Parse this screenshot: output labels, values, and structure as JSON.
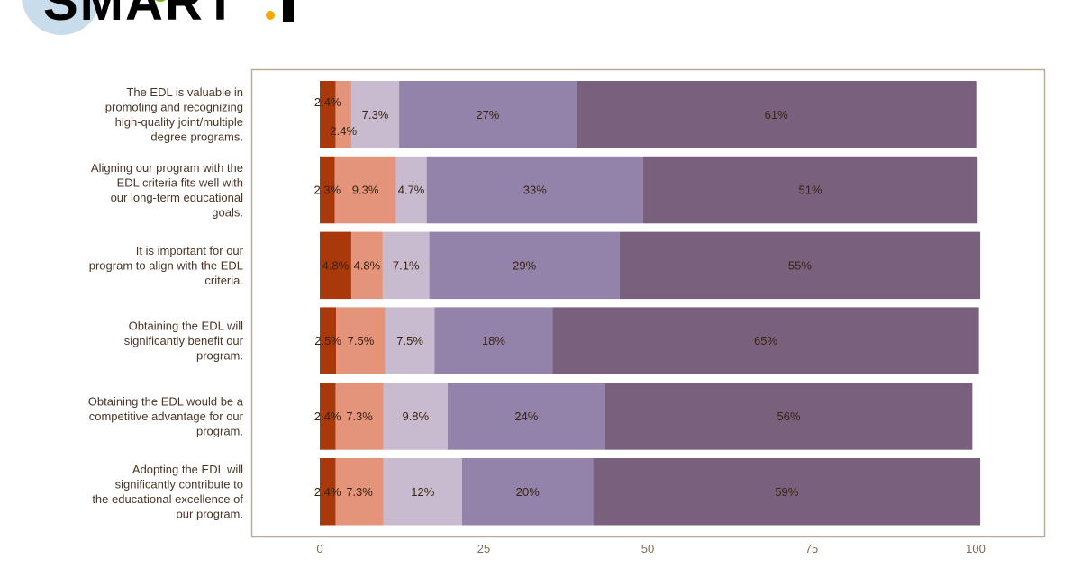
{
  "logo": {
    "text": "SMART.I",
    "colors": {
      "circle": "#c9dcec",
      "accent_dot": "#f5a800",
      "green_dot": "#7ab51d"
    }
  },
  "chart_data": {
    "type": "bar",
    "orientation": "horizontal",
    "stacked": true,
    "categories": [
      "The EDL is valuable in promoting and recognizing high-quality joint/multiple degree programs.",
      "Aligning our program with the EDL criteria fits well with our long-term educational goals.",
      "It is important for our program to align with the EDL criteria.",
      "Obtaining the EDL will significantly benefit our program.",
      "Obtaining the EDL would be a competitive advantage for our program.",
      "Adopting the EDL will significantly contribute to the educational excellence of our program."
    ],
    "category_lines": [
      [
        "The EDL is valuable in",
        "promoting and recognizing",
        "high-quality joint/multiple",
        "degree programs."
      ],
      [
        "Aligning our program with the",
        "EDL criteria fits well with",
        "our long-term educational",
        "goals."
      ],
      [
        "It is important for our",
        "program to align with the EDL",
        "criteria."
      ],
      [
        "Obtaining the EDL will",
        "significantly benefit our",
        "program."
      ],
      [
        "Obtaining the EDL would be a",
        "competitive advantage for our",
        "program."
      ],
      [
        "Adopting the EDL will",
        "significantly contribute to",
        "the educational excellence of",
        "our program."
      ]
    ],
    "series": [
      {
        "color": "#a9380b",
        "values": [
          2.4,
          2.3,
          4.8,
          2.5,
          2.4,
          2.4
        ],
        "labels": [
          "2.4%",
          "2.3%",
          "4.8%",
          "2.5%",
          "2.4%",
          "2.4%"
        ]
      },
      {
        "color": "#e3947a",
        "values": [
          2.4,
          9.3,
          4.8,
          7.5,
          7.3,
          7.3
        ],
        "labels": [
          "2.4%",
          "9.3%",
          "4.8%",
          "7.5%",
          "7.3%",
          "7.3%"
        ]
      },
      {
        "color": "#c8bbd0",
        "values": [
          7.3,
          4.7,
          7.1,
          7.5,
          9.8,
          12
        ],
        "labels": [
          "7.3%",
          "4.7%",
          "7.1%",
          "7.5%",
          "9.8%",
          "12%"
        ]
      },
      {
        "color": "#9383ab",
        "values": [
          27,
          33,
          29,
          18,
          24,
          20
        ],
        "labels": [
          "27%",
          "33%",
          "29%",
          "18%",
          "24%",
          "20%"
        ]
      },
      {
        "color": "#79617d",
        "values": [
          61,
          51,
          55,
          65,
          56,
          59
        ],
        "labels": [
          "61%",
          "51%",
          "55%",
          "65%",
          "56%",
          "59%"
        ]
      }
    ],
    "xlim": [
      0,
      100
    ],
    "xticks": [
      "0",
      "25",
      "50",
      "75",
      "100"
    ],
    "frame_color": "#b9aa99",
    "grid": false,
    "legend": "none"
  }
}
